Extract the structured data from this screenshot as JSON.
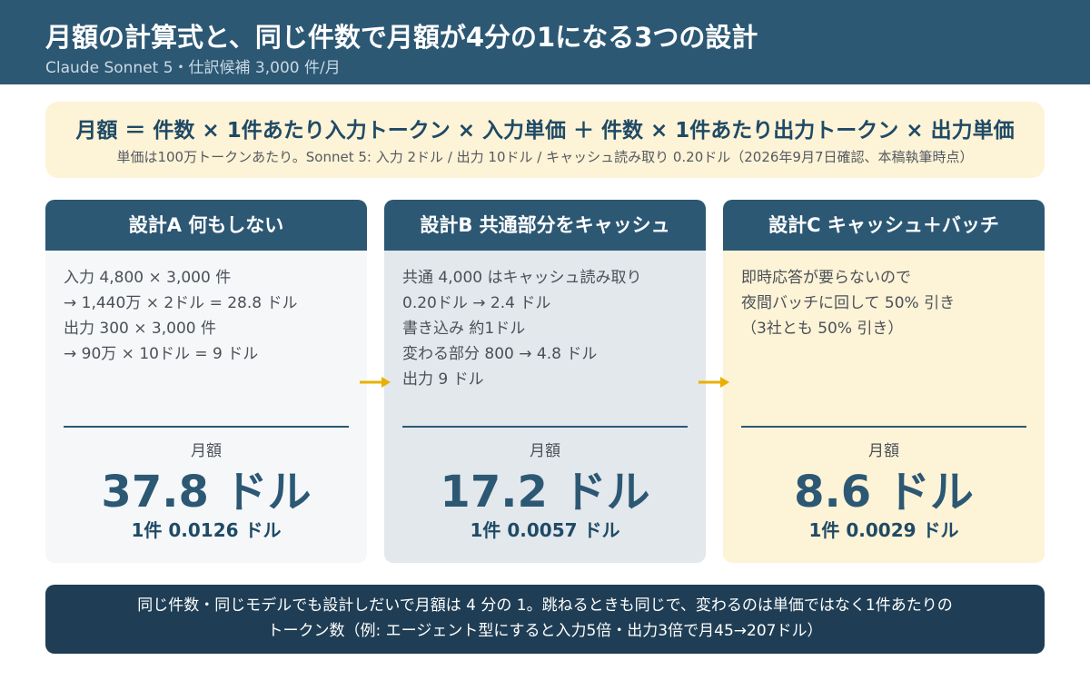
{
  "header": {
    "title": "月額の計算式と、同じ件数で月額が4分の1になる3つの設計",
    "subtitle": "Claude Sonnet 5・仕訳候補 3,000 件/月"
  },
  "formula": {
    "text": "月額 ＝ 件数 × 1件あたり入力トークン × 入力単価 ＋ 件数 × 1件あたり出力トークン × 出力単価",
    "note": "単価は100万トークンあたり。Sonnet 5: 入力 2ドル / 出力 10ドル / キャッシュ読み取り 0.20ドル（2026年9月7日確認、本稿執筆時点）"
  },
  "colors": {
    "header": "#2c5874",
    "accent_yellow": "#e8b000",
    "card_a_bg": "#f5f7f9",
    "card_b_bg": "#e3e8ec",
    "card_c_bg": "#fdf3d6",
    "summary_bg": "#1f3e55"
  },
  "cards": [
    {
      "title": "設計A 何もしない",
      "lines": [
        "入力 4,800 × 3,000 件",
        "→ 1,440万 × 2ドル = 28.8 ドル",
        "出力 300 × 3,000 件",
        "→ 90万 × 10ドル = 9 ドル",
        ""
      ],
      "label": "月額",
      "amount": "37.8 ドル",
      "per_item": "1件 0.0126 ドル"
    },
    {
      "title": "設計B 共通部分をキャッシュ",
      "lines": [
        "共通 4,000 はキャッシュ読み取り",
        "0.20ドル → 2.4 ドル",
        "書き込み 約1ドル",
        "変わる部分 800 → 4.8 ドル",
        "出力 9 ドル"
      ],
      "label": "月額",
      "amount": "17.2 ドル",
      "per_item": "1件 0.0057 ドル"
    },
    {
      "title": "設計C キャッシュ＋バッチ",
      "lines": [
        "即時応答が要らないので",
        "夜間バッチに回して 50% 引き",
        "（3社とも 50% 引き）",
        "",
        ""
      ],
      "label": "月額",
      "amount": "8.6 ドル",
      "per_item": "1件 0.0029 ドル"
    }
  ],
  "arrows": [
    "arrow-right-icon",
    "arrow-right-icon"
  ],
  "summary": {
    "line1": "同じ件数・同じモデルでも設計しだいで月額は 4 分の 1。跳ねるときも同じで、変わるのは単価ではなく1件あたりの",
    "line2": "トークン数（例: エージェント型にすると入力5倍・出力3倍で月45→207ドル）"
  }
}
